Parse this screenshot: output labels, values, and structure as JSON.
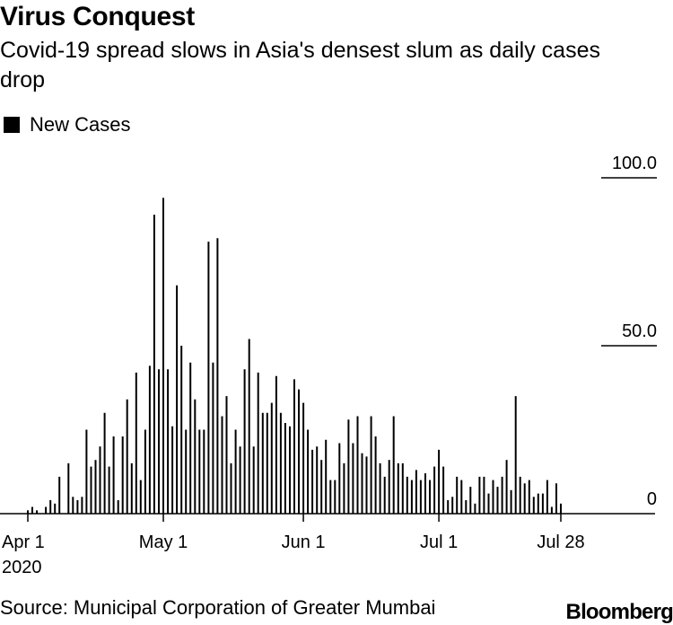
{
  "header": {
    "title": "Virus Conquest",
    "subtitle": "Covid-19 spread slows in Asia's densest slum as daily cases drop"
  },
  "footer": {
    "source": "Source: Municipal Corporation of Greater Mumbai",
    "brand": "Bloomberg"
  },
  "colors": {
    "bars": "#000000",
    "text": "#000000",
    "background": "#ffffff"
  },
  "chart_data": {
    "type": "bar",
    "title": "Virus Conquest",
    "subtitle": "Covid-19 spread slows in Asia's densest slum as daily cases drop",
    "legend": {
      "position": "top-left",
      "entries": [
        "New Cases"
      ]
    },
    "x": {
      "start": "2020-04-01",
      "end": "2020-07-28",
      "ticks": [
        {
          "date": "2020-04-01",
          "label": "Apr 1",
          "sublabel": "2020"
        },
        {
          "date": "2020-05-01",
          "label": "May 1"
        },
        {
          "date": "2020-06-01",
          "label": "Jun 1"
        },
        {
          "date": "2020-07-01",
          "label": "Jul 1"
        },
        {
          "date": "2020-07-28",
          "label": "Jul 28"
        }
      ]
    },
    "y": {
      "range": [
        0,
        100
      ],
      "ticks": [
        {
          "value": 100,
          "label": "100.0"
        },
        {
          "value": 50,
          "label": "50.0"
        },
        {
          "value": 0,
          "label": "0"
        }
      ],
      "position": "right"
    },
    "grid": false,
    "series": [
      {
        "name": "New Cases",
        "dates": [
          "2020-04-01",
          "2020-04-02",
          "2020-04-03",
          "2020-04-04",
          "2020-04-05",
          "2020-04-06",
          "2020-04-07",
          "2020-04-08",
          "2020-04-09",
          "2020-04-10",
          "2020-04-11",
          "2020-04-12",
          "2020-04-13",
          "2020-04-14",
          "2020-04-15",
          "2020-04-16",
          "2020-04-17",
          "2020-04-18",
          "2020-04-19",
          "2020-04-20",
          "2020-04-21",
          "2020-04-22",
          "2020-04-23",
          "2020-04-24",
          "2020-04-25",
          "2020-04-26",
          "2020-04-27",
          "2020-04-28",
          "2020-04-29",
          "2020-04-30",
          "2020-05-01",
          "2020-05-02",
          "2020-05-03",
          "2020-05-04",
          "2020-05-05",
          "2020-05-06",
          "2020-05-07",
          "2020-05-08",
          "2020-05-09",
          "2020-05-10",
          "2020-05-11",
          "2020-05-12",
          "2020-05-13",
          "2020-05-14",
          "2020-05-15",
          "2020-05-16",
          "2020-05-17",
          "2020-05-18",
          "2020-05-19",
          "2020-05-20",
          "2020-05-21",
          "2020-05-22",
          "2020-05-23",
          "2020-05-24",
          "2020-05-25",
          "2020-05-26",
          "2020-05-27",
          "2020-05-28",
          "2020-05-29",
          "2020-05-30",
          "2020-05-31",
          "2020-06-01",
          "2020-06-02",
          "2020-06-03",
          "2020-06-04",
          "2020-06-05",
          "2020-06-06",
          "2020-06-07",
          "2020-06-08",
          "2020-06-09",
          "2020-06-10",
          "2020-06-11",
          "2020-06-12",
          "2020-06-13",
          "2020-06-14",
          "2020-06-15",
          "2020-06-16",
          "2020-06-17",
          "2020-06-18",
          "2020-06-19",
          "2020-06-20",
          "2020-06-21",
          "2020-06-22",
          "2020-06-23",
          "2020-06-24",
          "2020-06-25",
          "2020-06-26",
          "2020-06-27",
          "2020-06-28",
          "2020-06-29",
          "2020-06-30",
          "2020-07-01",
          "2020-07-02",
          "2020-07-03",
          "2020-07-04",
          "2020-07-05",
          "2020-07-06",
          "2020-07-07",
          "2020-07-08",
          "2020-07-09",
          "2020-07-10",
          "2020-07-11",
          "2020-07-12",
          "2020-07-13",
          "2020-07-14",
          "2020-07-15",
          "2020-07-16",
          "2020-07-17",
          "2020-07-18",
          "2020-07-19",
          "2020-07-20",
          "2020-07-21",
          "2020-07-22",
          "2020-07-23",
          "2020-07-24",
          "2020-07-25",
          "2020-07-26",
          "2020-07-27",
          "2020-07-28"
        ],
        "values": [
          1,
          2,
          1,
          0,
          2,
          4,
          3,
          11,
          0,
          15,
          5,
          4,
          5,
          25,
          14,
          16,
          20,
          30,
          14,
          23,
          4,
          23,
          34,
          15,
          42,
          10,
          25,
          44,
          89,
          43,
          94,
          43,
          26,
          68,
          50,
          25,
          45,
          34,
          25,
          25,
          81,
          45,
          82,
          29,
          35,
          15,
          25,
          20,
          43,
          52,
          20,
          42,
          30,
          30,
          33,
          41,
          30,
          27,
          26,
          40,
          37,
          33,
          25,
          19,
          20,
          16,
          22,
          10,
          10,
          21,
          15,
          28,
          21,
          29,
          18,
          17,
          29,
          23,
          15,
          11,
          16,
          29,
          15,
          15,
          11,
          10,
          13,
          10,
          12,
          10,
          14,
          19,
          14,
          4,
          5,
          11,
          10,
          4,
          8,
          3,
          11,
          11,
          6,
          10,
          8,
          11,
          16,
          7,
          35,
          11,
          9,
          10,
          5,
          6,
          6,
          10,
          2,
          9,
          3
        ]
      }
    ]
  }
}
